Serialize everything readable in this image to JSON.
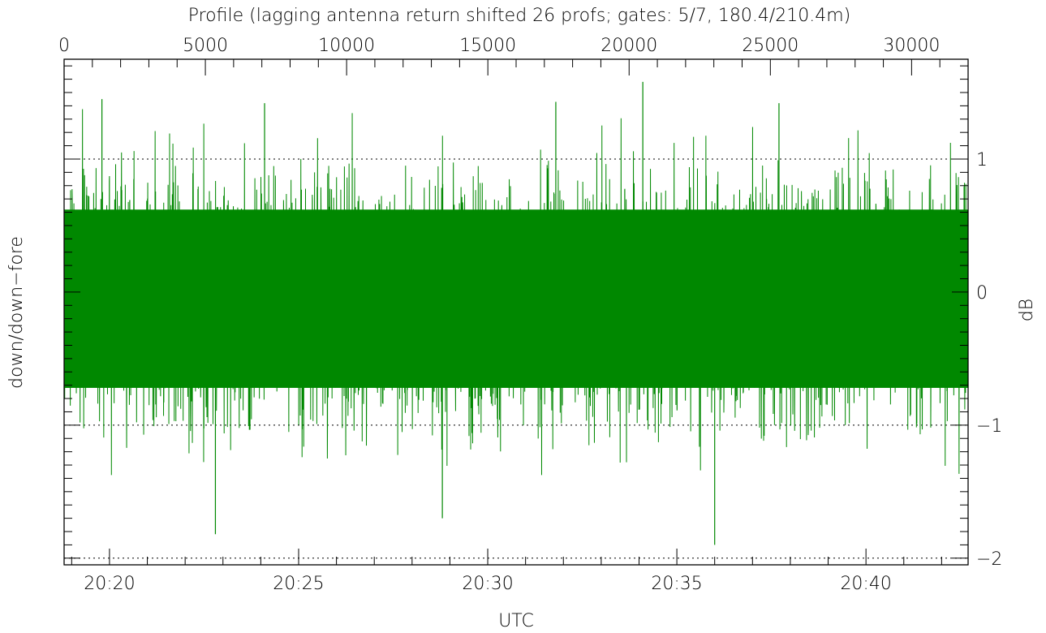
{
  "chart_data": {
    "type": "line",
    "title": "Profile (lagging antenna return shifted 26 profs; gates: 5/7, 180.4/210.4m)",
    "xlabel": "UTC",
    "ylabel_left": "down/down−fore",
    "ylabel_right": "dB",
    "series_color": "#008800",
    "x_bottom": {
      "unit": "minutes_of_day",
      "range": [
        1218.8,
        1242.7
      ],
      "ticks": [
        "20:20",
        "20:25",
        "20:30",
        "20:35",
        "20:40"
      ],
      "tick_values": [
        1220,
        1225,
        1230,
        1235,
        1240
      ]
    },
    "x_top": {
      "range": [
        0,
        32000
      ],
      "ticks": [
        "0",
        "5000",
        "10000",
        "15000",
        "20000",
        "25000",
        "30000"
      ],
      "tick_values": [
        0,
        5000,
        10000,
        15000,
        20000,
        25000,
        30000
      ]
    },
    "y": {
      "range": [
        -2.05,
        1.75
      ],
      "ticks": [
        "1",
        "0",
        "−1",
        "−2"
      ],
      "tick_values": [
        1,
        0,
        -1,
        -2
      ],
      "gridlines_dotted": [
        1,
        0,
        -1,
        -2
      ]
    },
    "series": [
      {
        "core_band": {
          "upper": 0.62,
          "lower": -0.72
        },
        "typical_excursion": {
          "upper": 1.25,
          "lower": -1.25
        },
        "x_start": 1218.8,
        "x_end": 1242.7,
        "points_estimated": 32000,
        "notable_peaks": [
          {
            "x": 1219.8,
            "y": 1.45
          },
          {
            "x": 1224.1,
            "y": 1.42
          },
          {
            "x": 1231.8,
            "y": 1.43
          },
          {
            "x": 1234.1,
            "y": 1.58
          },
          {
            "x": 1237.7,
            "y": 1.42
          }
        ],
        "notable_troughs": [
          {
            "x": 1222.8,
            "y": -1.82
          },
          {
            "x": 1228.8,
            "y": -1.7
          },
          {
            "x": 1236.0,
            "y": -1.9
          }
        ]
      }
    ]
  }
}
